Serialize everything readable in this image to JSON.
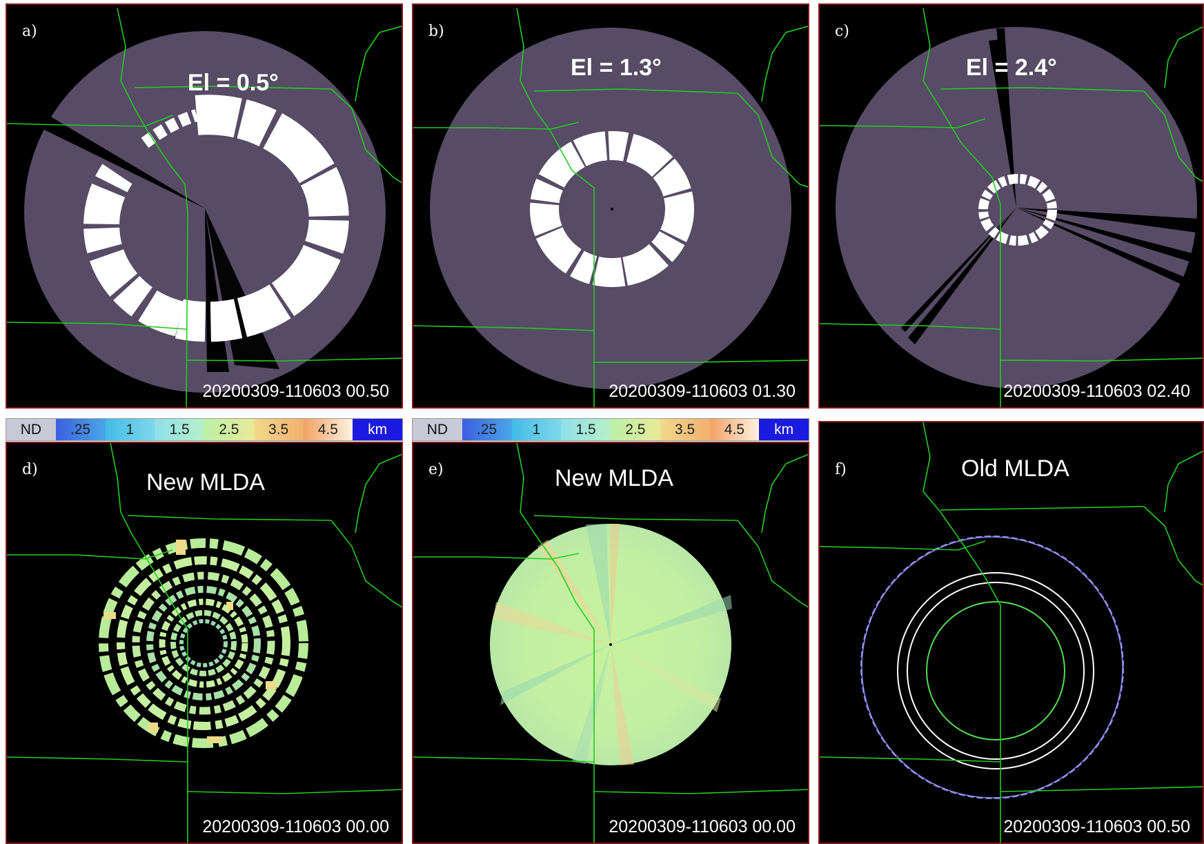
{
  "colors": {
    "panel_bg": "#000000",
    "coverage": "#574b65",
    "echo": "#ffffff",
    "border_lines": "#22cc22",
    "panel_border": "#8b1a1a",
    "ring_blue": "#8f8ff0",
    "ring_white": "#ffffff",
    "ring_green": "#55dd55",
    "mlda_fill": "#c6f2a0"
  },
  "panels": [
    {
      "id": "a",
      "letter": "a)",
      "title": "El = 0.5°",
      "timestamp": "20200309-110603 00.50"
    },
    {
      "id": "b",
      "letter": "b)",
      "title": "El = 1.3°",
      "timestamp": "20200309-110603 01.30"
    },
    {
      "id": "c",
      "letter": "c)",
      "title": "El = 2.4°",
      "timestamp": "20200309-110603 02.40"
    },
    {
      "id": "d",
      "letter": "d)",
      "title": "New MLDA",
      "timestamp": "20200309-110603 00.00"
    },
    {
      "id": "e",
      "letter": "e)",
      "title": "New MLDA",
      "timestamp": "20200309-110603 00.00"
    },
    {
      "id": "f",
      "letter": "f)",
      "title": "Old MLDA",
      "timestamp": "20200309-110603 00.50"
    }
  ],
  "colorbar": {
    "labels": [
      "ND",
      ".25",
      "1",
      "1.5",
      "2.5",
      "3.5",
      "4.5",
      "km"
    ],
    "colors": [
      "#c9c9d8",
      "#4a78e8",
      "#44bbe8",
      "#8fe0ea",
      "#bdf0a8",
      "#f2d98a",
      "#f2a265",
      "#ffffff",
      "#1a1ae0"
    ]
  }
}
